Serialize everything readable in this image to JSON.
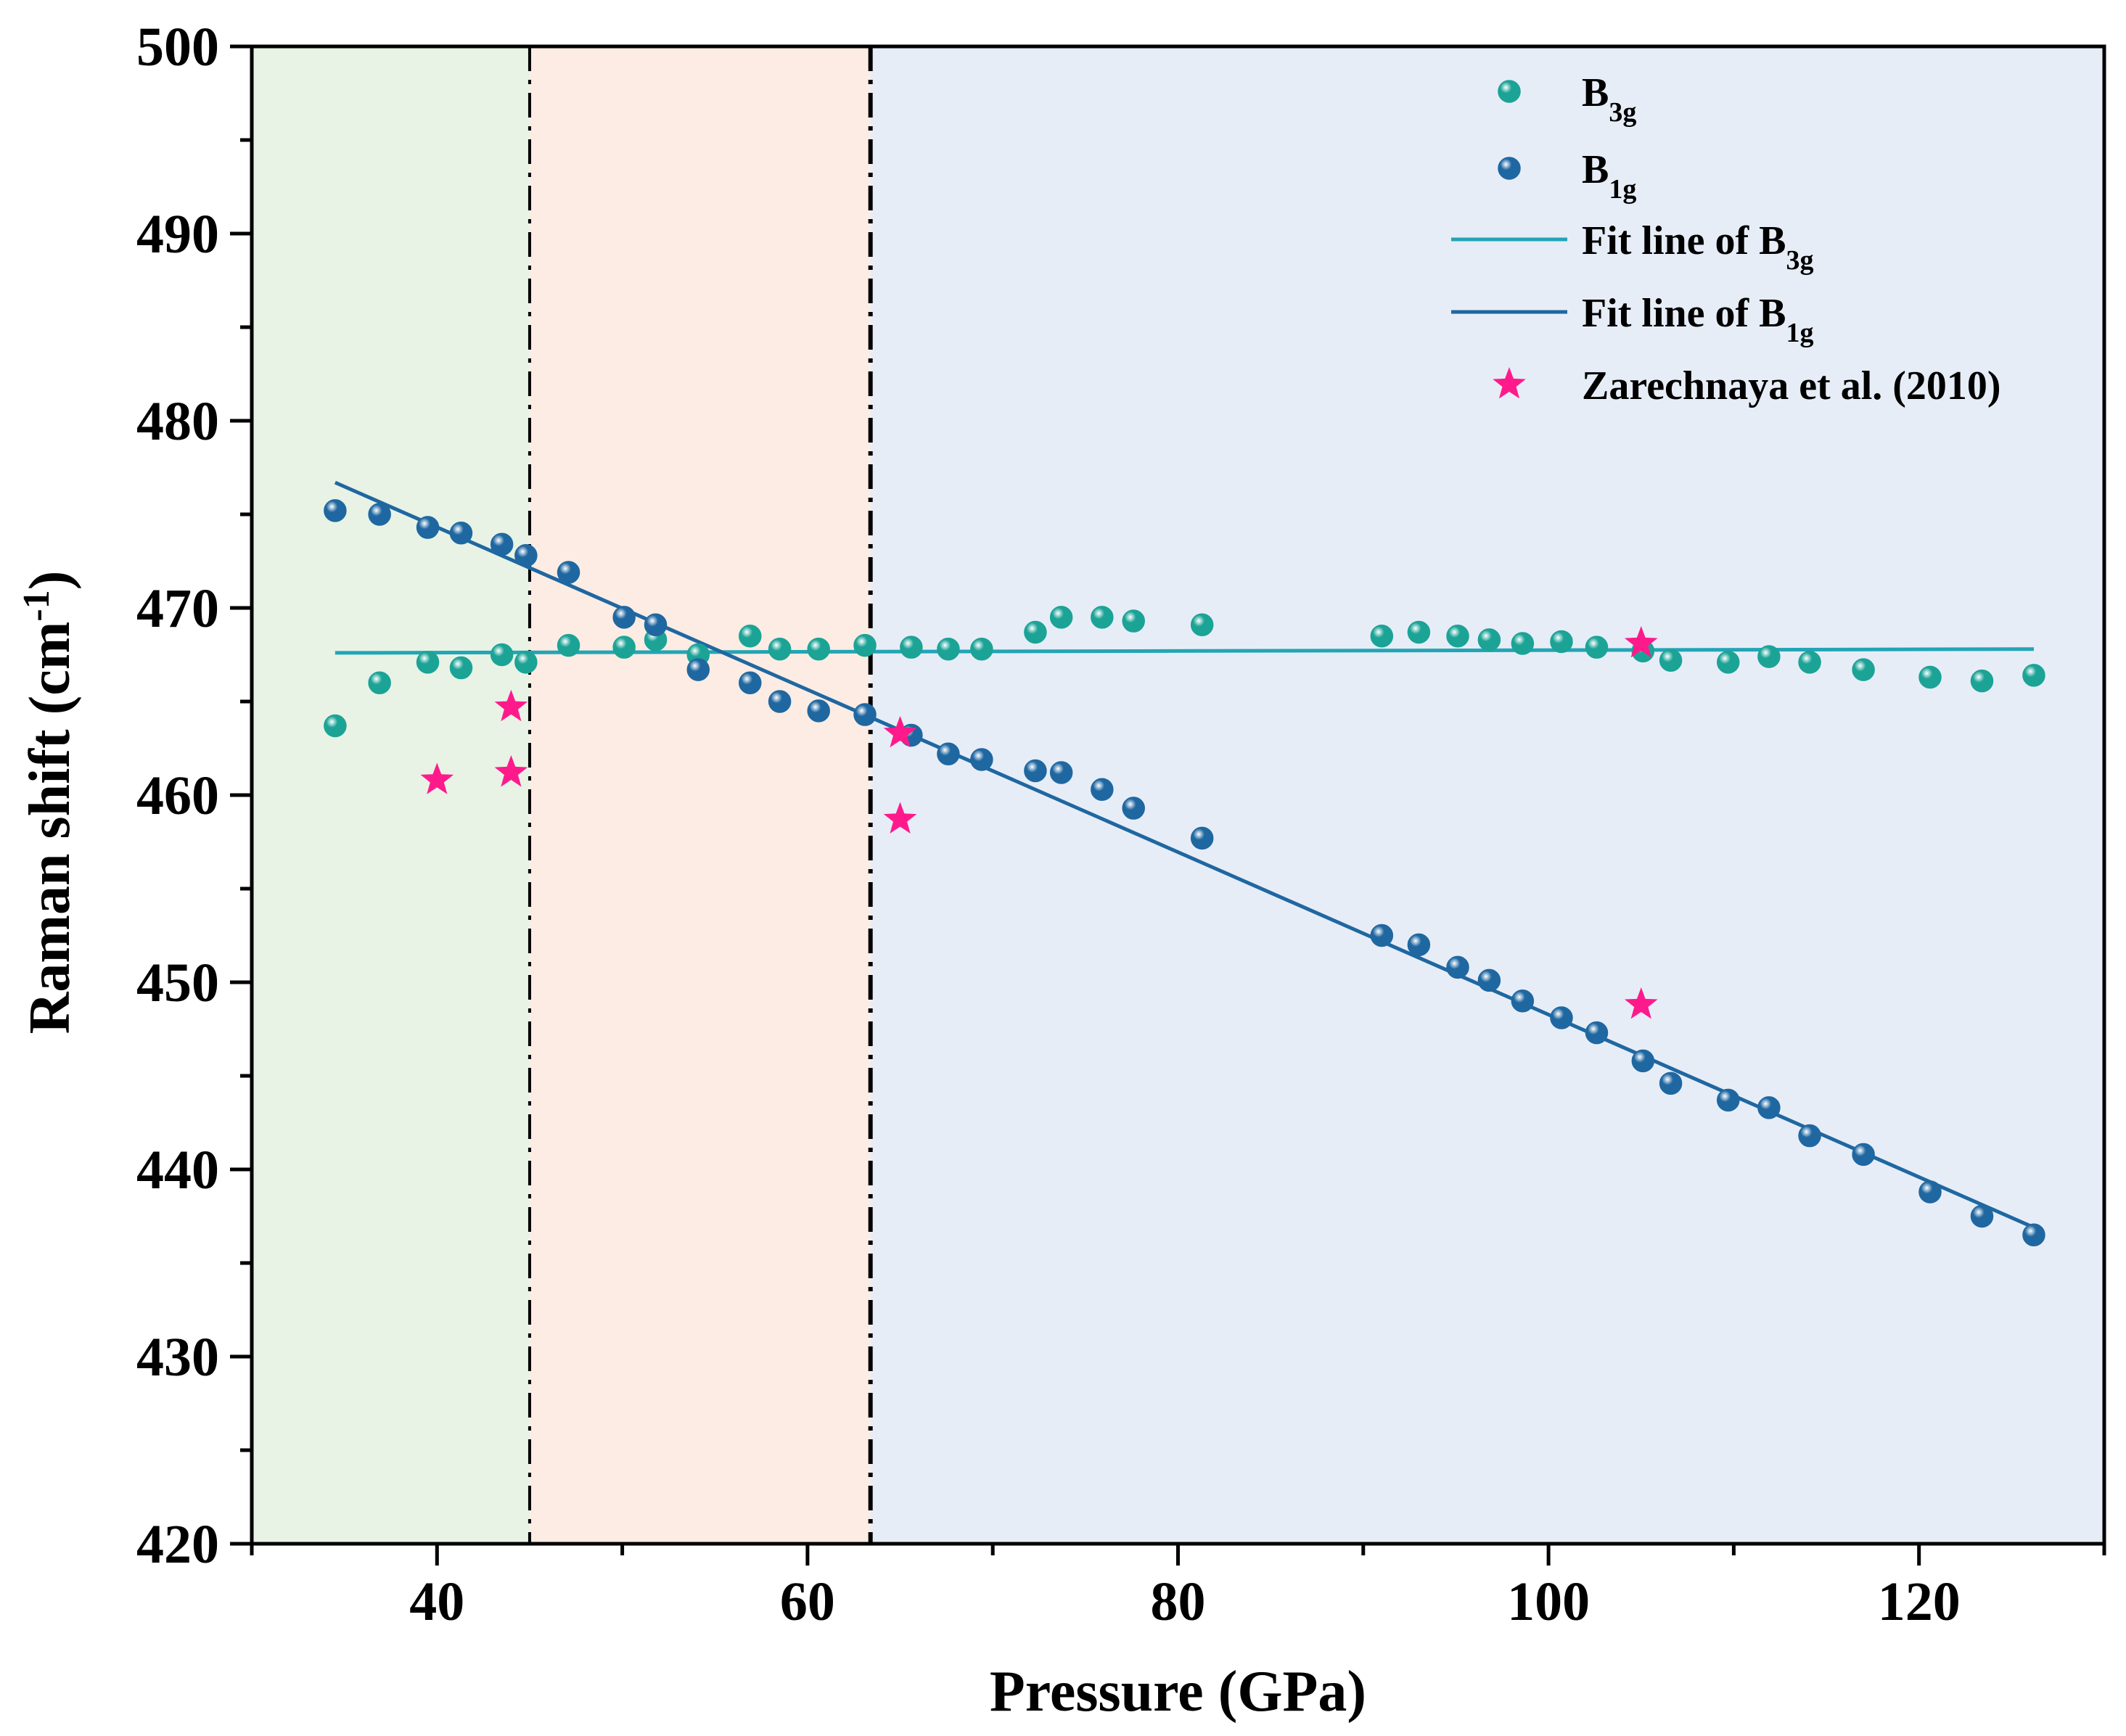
{
  "chart_data": {
    "type": "scatter",
    "xlabel": "Pressure (GPa)",
    "ylabel": {
      "main": "Raman shift (cm",
      "sup": "-1",
      "close": ")"
    },
    "xlim": [
      30,
      130
    ],
    "ylim": [
      420,
      500
    ],
    "xticks": [
      40,
      60,
      80,
      100,
      120
    ],
    "yticks": [
      420,
      430,
      440,
      450,
      460,
      470,
      480,
      490,
      500
    ],
    "grid": false,
    "legend_position": "top-right",
    "regions": [
      {
        "x0": 30,
        "x1": 45,
        "color": "#e8f3e5"
      },
      {
        "x0": 45,
        "x1": 63.4,
        "color": "#fcece3"
      },
      {
        "x0": 63.4,
        "x1": 130,
        "color": "#e7edf7"
      }
    ],
    "boundaries": [
      45,
      63.4
    ],
    "series": [
      {
        "name": {
          "base": "B",
          "sub": "3g"
        },
        "kind": "points",
        "color": "#1ba396",
        "points": [
          [
            34.5,
            463.7
          ],
          [
            36.9,
            466
          ],
          [
            39.5,
            467.1
          ],
          [
            41.3,
            466.8
          ],
          [
            43.5,
            467.5
          ],
          [
            44.8,
            467.1
          ],
          [
            47.1,
            468
          ],
          [
            50.1,
            467.9
          ],
          [
            51.8,
            468.3
          ],
          [
            54.1,
            467.5
          ],
          [
            56.9,
            468.5
          ],
          [
            58.5,
            467.8
          ],
          [
            60.6,
            467.8
          ],
          [
            63.1,
            468
          ],
          [
            65.6,
            467.9
          ],
          [
            67.6,
            467.8
          ],
          [
            69.4,
            467.8
          ],
          [
            72.3,
            468.7
          ],
          [
            73.7,
            469.5
          ],
          [
            75.9,
            469.5
          ],
          [
            77.6,
            469.3
          ],
          [
            81.3,
            469.1
          ],
          [
            91,
            468.5
          ],
          [
            93,
            468.7
          ],
          [
            95.1,
            468.5
          ],
          [
            96.8,
            468.3
          ],
          [
            98.6,
            468.1
          ],
          [
            100.7,
            468.2
          ],
          [
            102.6,
            467.9
          ],
          [
            105.1,
            467.7
          ],
          [
            106.6,
            467.2
          ],
          [
            109.7,
            467.1
          ],
          [
            111.9,
            467.4
          ],
          [
            114.1,
            467.1
          ],
          [
            117,
            466.7
          ],
          [
            120.6,
            466.3
          ],
          [
            123.4,
            466.1
          ],
          [
            126.2,
            466.4
          ]
        ]
      },
      {
        "name": {
          "base": "B",
          "sub": "1g"
        },
        "kind": "points",
        "color": "#1f67a1",
        "points": [
          [
            34.5,
            475.2
          ],
          [
            36.9,
            475
          ],
          [
            39.5,
            474.3
          ],
          [
            41.3,
            474
          ],
          [
            43.5,
            473.4
          ],
          [
            44.8,
            472.8
          ],
          [
            47.1,
            471.9
          ],
          [
            50.1,
            469.5
          ],
          [
            51.8,
            469.1
          ],
          [
            54.1,
            466.7
          ],
          [
            56.9,
            466
          ],
          [
            58.5,
            465
          ],
          [
            60.6,
            464.5
          ],
          [
            63.1,
            464.3
          ],
          [
            65.6,
            463.2
          ],
          [
            67.6,
            462.2
          ],
          [
            69.4,
            461.9
          ],
          [
            72.3,
            461.3
          ],
          [
            73.7,
            461.2
          ],
          [
            75.9,
            460.3
          ],
          [
            77.6,
            459.3
          ],
          [
            81.3,
            457.7
          ],
          [
            91,
            452.5
          ],
          [
            93,
            452
          ],
          [
            95.1,
            450.8
          ],
          [
            96.8,
            450.1
          ],
          [
            98.6,
            449
          ],
          [
            100.7,
            448.1
          ],
          [
            102.6,
            447.3
          ],
          [
            105.1,
            445.8
          ],
          [
            106.6,
            444.6
          ],
          [
            109.7,
            443.7
          ],
          [
            111.9,
            443.3
          ],
          [
            114.1,
            441.8
          ],
          [
            117,
            440.8
          ],
          [
            120.6,
            438.8
          ],
          [
            123.4,
            437.5
          ],
          [
            126.2,
            436.5
          ]
        ]
      },
      {
        "name": {
          "base": "Fit line of B",
          "sub": "3g"
        },
        "kind": "line",
        "color": "#22a5b5",
        "x": [
          34.5,
          126.2
        ],
        "y": [
          467.6,
          467.8
        ]
      },
      {
        "name": {
          "base": "Fit line of B",
          "sub": "1g"
        },
        "kind": "line",
        "color": "#1f67a1",
        "x": [
          34.5,
          126.2
        ],
        "y": [
          476.7,
          436.9
        ]
      },
      {
        "name": {
          "base": "Zarechnaya et al. (2010)",
          "sub": ""
        },
        "kind": "stars",
        "color": "#ff1a8c",
        "points": [
          [
            40,
            460.8
          ],
          [
            44,
            464.7
          ],
          [
            44,
            461.2
          ],
          [
            65,
            463.3
          ],
          [
            65,
            458.7
          ],
          [
            105,
            468.1
          ],
          [
            105,
            448.8
          ]
        ]
      }
    ]
  }
}
